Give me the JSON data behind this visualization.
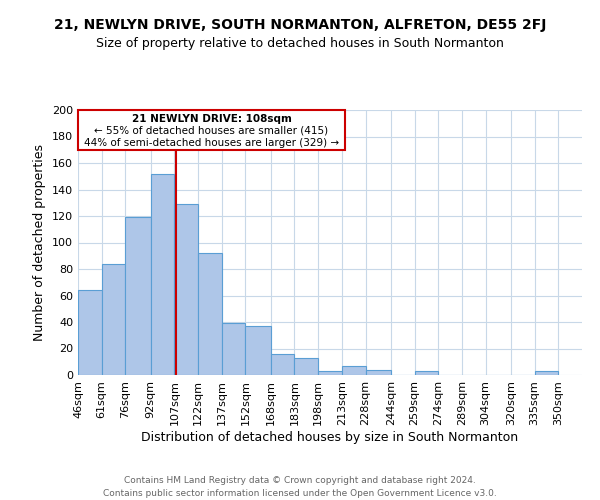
{
  "title": "21, NEWLYN DRIVE, SOUTH NORMANTON, ALFRETON, DE55 2FJ",
  "subtitle": "Size of property relative to detached houses in South Normanton",
  "xlabel": "Distribution of detached houses by size in South Normanton",
  "ylabel": "Number of detached properties",
  "bar_left_edges": [
    46,
    61,
    76,
    92,
    107,
    122,
    137,
    152,
    168,
    183,
    198,
    213,
    228,
    244,
    259,
    274,
    289,
    304,
    320,
    335
  ],
  "bar_widths": [
    15,
    15,
    16,
    15,
    15,
    15,
    15,
    16,
    15,
    15,
    15,
    15,
    16,
    15,
    15,
    15,
    15,
    16,
    15,
    15
  ],
  "bar_heights": [
    64,
    84,
    119,
    152,
    129,
    92,
    39,
    37,
    16,
    13,
    3,
    7,
    4,
    0,
    3,
    0,
    0,
    0,
    0,
    3
  ],
  "bar_color": "#aec6e8",
  "bar_edge_color": "#5a9ed4",
  "vline_x": 108,
  "vline_color": "#cc0000",
  "annotation_text_line1": "21 NEWLYN DRIVE: 108sqm",
  "annotation_text_line2": "← 55% of detached houses are smaller (415)",
  "annotation_text_line3": "44% of semi-detached houses are larger (329) →",
  "annotation_box_color": "#cc0000",
  "annotation_fill_color": "#ffffff",
  "xlim": [
    46,
    365
  ],
  "ylim": [
    0,
    200
  ],
  "yticks": [
    0,
    20,
    40,
    60,
    80,
    100,
    120,
    140,
    160,
    180,
    200
  ],
  "xtick_labels": [
    "46sqm",
    "61sqm",
    "76sqm",
    "92sqm",
    "107sqm",
    "122sqm",
    "137sqm",
    "152sqm",
    "168sqm",
    "183sqm",
    "198sqm",
    "213sqm",
    "228sqm",
    "244sqm",
    "259sqm",
    "274sqm",
    "289sqm",
    "304sqm",
    "320sqm",
    "335sqm",
    "350sqm"
  ],
  "xtick_positions": [
    46,
    61,
    76,
    92,
    107,
    122,
    137,
    152,
    168,
    183,
    198,
    213,
    228,
    244,
    259,
    274,
    289,
    304,
    320,
    335,
    350
  ],
  "footer1": "Contains HM Land Registry data © Crown copyright and database right 2024.",
  "footer2": "Contains public sector information licensed under the Open Government Licence v3.0.",
  "background_color": "#ffffff",
  "grid_color": "#c8d8e8",
  "title_fontsize": 10,
  "subtitle_fontsize": 9
}
